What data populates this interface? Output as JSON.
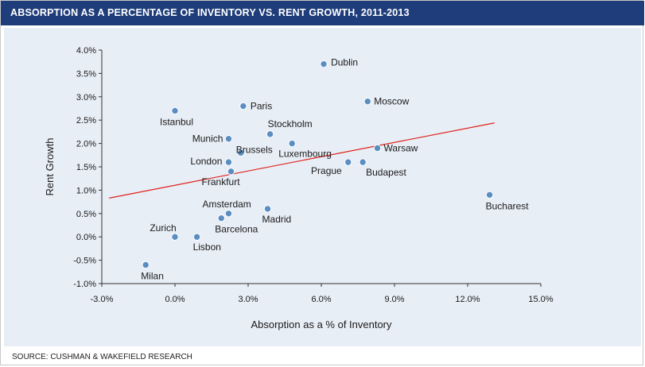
{
  "header": {
    "title": "ABSORPTION AS A PERCENTAGE OF INVENTORY VS. RENT GROWTH, 2011-2013"
  },
  "footer": {
    "source": "SOURCE: CUSHMAN & WAKEFIELD RESEARCH"
  },
  "chart_data": {
    "type": "scatter",
    "xlabel": "Absorption as a % of Inventory",
    "ylabel": "Rent Growth",
    "xlim": [
      -3.0,
      15.0
    ],
    "ylim": [
      -1.0,
      4.0
    ],
    "x_ticks": [
      "-3.0%",
      "0.0%",
      "3.0%",
      "6.0%",
      "9.0%",
      "12.0%",
      "15.0%"
    ],
    "y_ticks": [
      "4.0%",
      "3.5%",
      "3.0%",
      "2.5%",
      "2.0%",
      "1.5%",
      "1.0%",
      "0.5%",
      "0.0%",
      "-0.5%",
      "-1.0%"
    ],
    "grid": false,
    "colors": {
      "header": "#1f3d7a",
      "background": "#e8eef6",
      "marker": "#5a8ec2",
      "trendline": "#e0201b"
    },
    "points": [
      {
        "label": "Dublin",
        "x": 6.1,
        "y": 3.7
      },
      {
        "label": "Moscow",
        "x": 7.9,
        "y": 2.9
      },
      {
        "label": "Paris",
        "x": 2.8,
        "y": 2.8
      },
      {
        "label": "Istanbul",
        "x": 0.0,
        "y": 2.7
      },
      {
        "label": "Stockholm",
        "x": 3.9,
        "y": 2.2
      },
      {
        "label": "Munich",
        "x": 2.2,
        "y": 2.1
      },
      {
        "label": "Luxembourg",
        "x": 4.8,
        "y": 2.0
      },
      {
        "label": "Warsaw",
        "x": 8.3,
        "y": 1.9
      },
      {
        "label": "Brussels",
        "x": 2.7,
        "y": 1.8
      },
      {
        "label": "London",
        "x": 2.2,
        "y": 1.6
      },
      {
        "label": "Prague",
        "x": 7.1,
        "y": 1.6
      },
      {
        "label": "Budapest",
        "x": 7.7,
        "y": 1.6
      },
      {
        "label": "Frankfurt",
        "x": 2.3,
        "y": 1.4
      },
      {
        "label": "Bucharest",
        "x": 12.9,
        "y": 0.9
      },
      {
        "label": "Madrid",
        "x": 3.8,
        "y": 0.6
      },
      {
        "label": "Amsterdam",
        "x": 2.2,
        "y": 0.5
      },
      {
        "label": "Barcelona",
        "x": 1.9,
        "y": 0.4
      },
      {
        "label": "Zurich",
        "x": 0.0,
        "y": 0.0
      },
      {
        "label": "Lisbon",
        "x": 0.9,
        "y": 0.0
      },
      {
        "label": "Milan",
        "x": -1.2,
        "y": -0.6
      }
    ],
    "trendline": {
      "x": [
        -2.7,
        13.1
      ],
      "y": [
        0.83,
        2.44
      ]
    }
  }
}
